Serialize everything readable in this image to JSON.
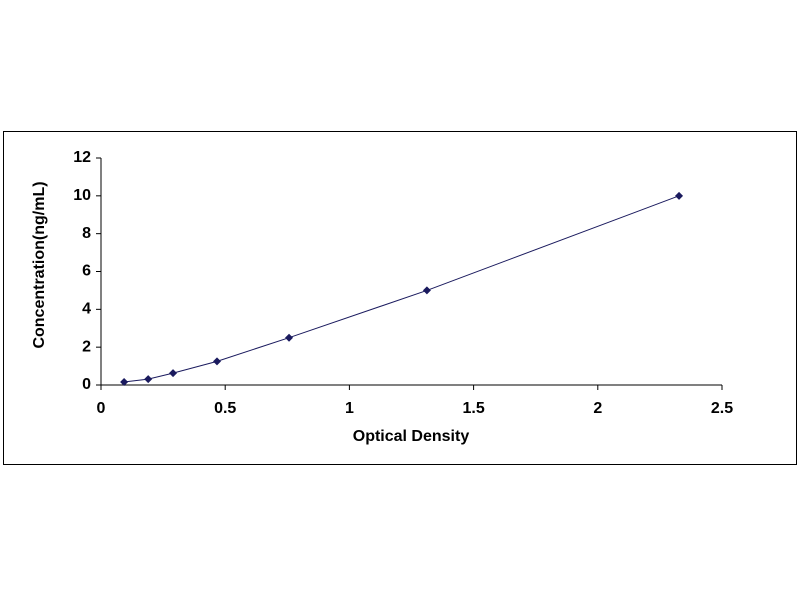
{
  "chart_data": {
    "type": "line",
    "x_label": "Optical Density",
    "y_label": "Concentration(ng/mL)",
    "x": [
      0.093,
      0.19,
      0.29,
      0.467,
      0.757,
      1.312,
      2.327
    ],
    "series": [
      {
        "color": "#1a1a5e",
        "values": [
          0.16,
          0.31,
          0.63,
          1.25,
          2.5,
          5,
          10
        ]
      }
    ],
    "xlim": [
      0,
      2.5
    ],
    "xticks": [
      0,
      0.5,
      1,
      1.5,
      2,
      2.5
    ],
    "ylim": [
      0,
      12
    ],
    "yticks": [
      0,
      2,
      4,
      6,
      8,
      10,
      12
    ],
    "grid": false
  }
}
